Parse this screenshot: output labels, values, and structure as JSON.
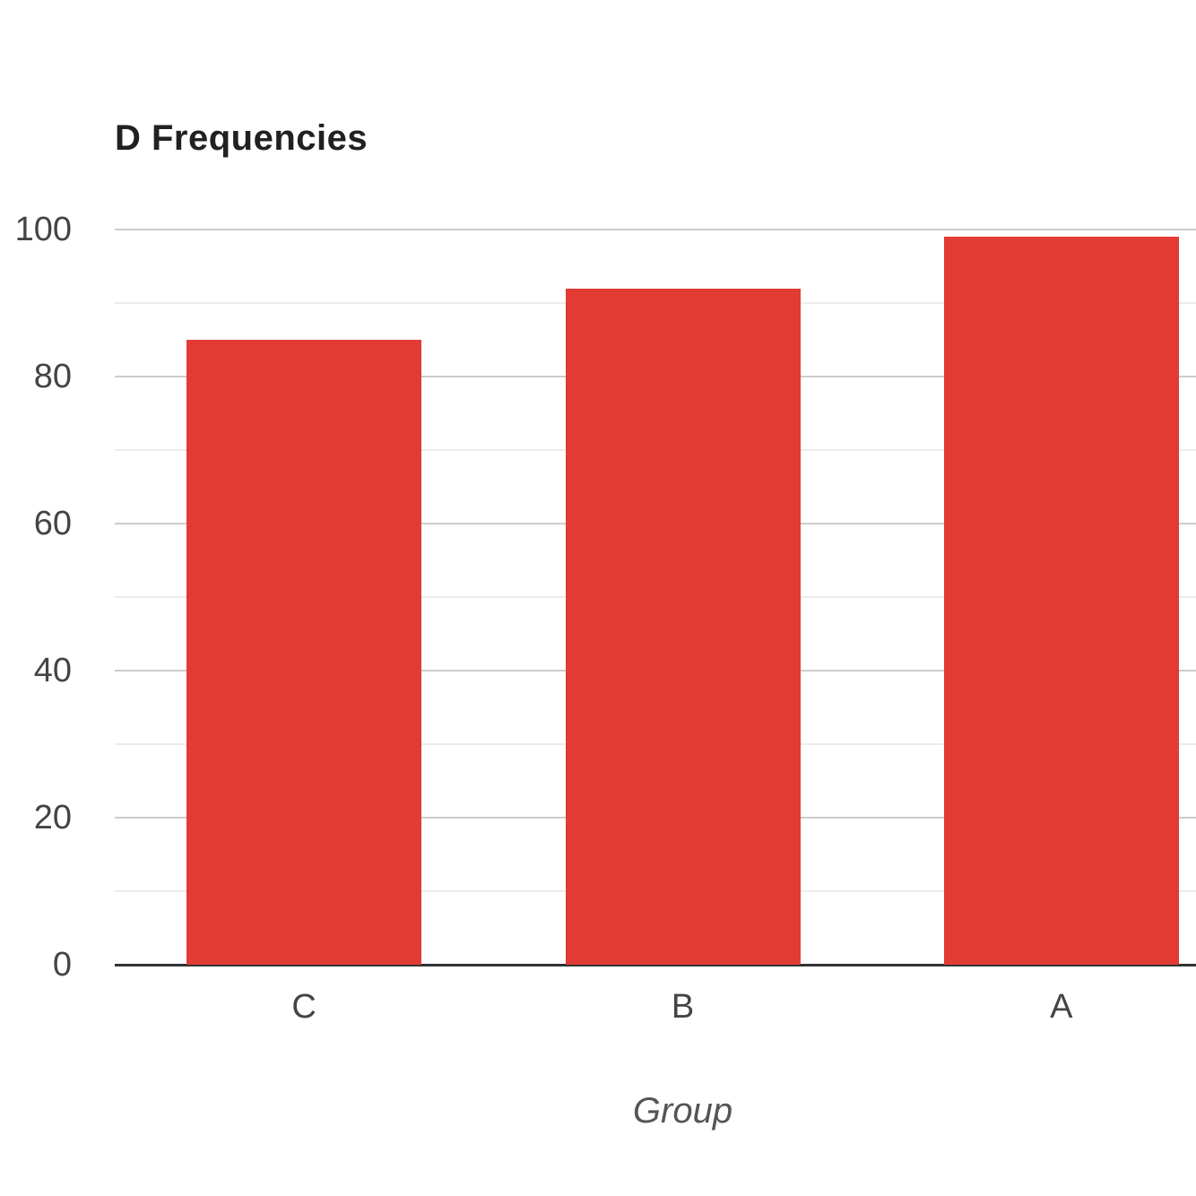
{
  "chart_data": {
    "type": "bar",
    "title": "D Frequencies",
    "xlabel": "Group",
    "ylabel": "",
    "categories": [
      "C",
      "B",
      "A"
    ],
    "values": [
      85,
      92,
      99
    ],
    "ylim": [
      0,
      100
    ],
    "yticks": [
      0,
      20,
      40,
      60,
      80,
      100
    ],
    "minor_grid_step": 10,
    "grid": "major and minor horizontal gridlines",
    "legend_position": "none",
    "bar_color": "#e23b33",
    "major_grid_color": "#cccccc",
    "minor_grid_color": "#ececec",
    "axis_line_color": "#333333",
    "title_color": "#212121",
    "tick_label_color": "#444444",
    "axis_title_color": "#555555",
    "background_color": "#ffffff"
  }
}
